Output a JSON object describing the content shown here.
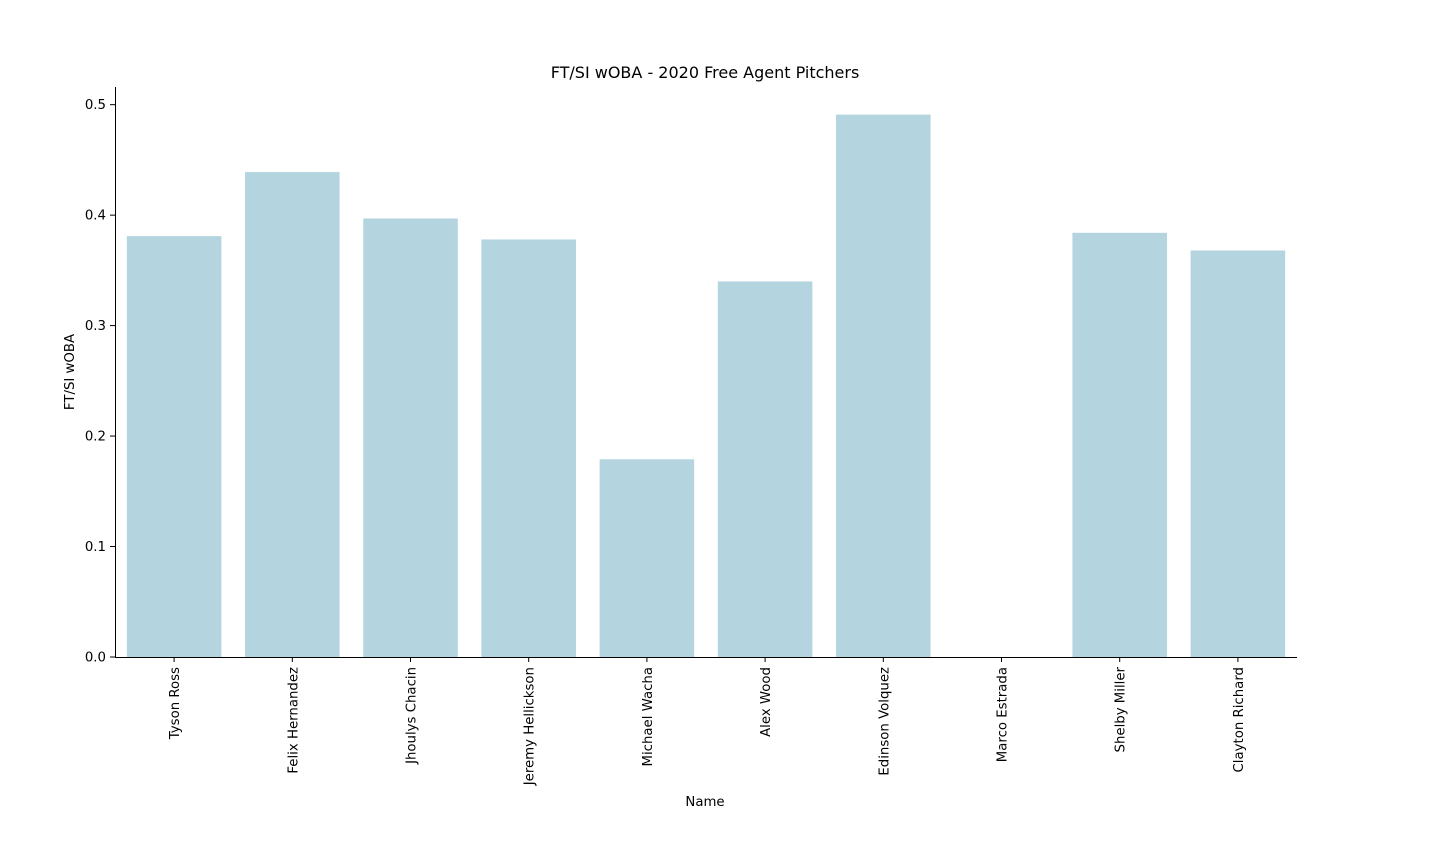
{
  "chart_data": {
    "type": "bar",
    "title": "FT/SI wOBA - 2020 Free Agent Pitchers",
    "xlabel": "Name",
    "ylabel": "FT/SI wOBA",
    "categories": [
      "Tyson Ross",
      "Felix Hernandez",
      "Jhoulys Chacin",
      "Jeremy Hellickson",
      "Michael Wacha",
      "Alex Wood",
      "Edinson Volquez",
      "Marco Estrada",
      "Shelby Miller",
      "Clayton Richard"
    ],
    "values": [
      0.381,
      0.439,
      0.397,
      0.378,
      0.179,
      0.34,
      0.491,
      0.0,
      0.384,
      0.368
    ],
    "ylim": [
      0,
      0.516
    ],
    "yticks": [
      "0.0",
      "0.1",
      "0.2",
      "0.3",
      "0.4",
      "0.5"
    ],
    "grid": false,
    "bar_color": "#b4d5df"
  }
}
